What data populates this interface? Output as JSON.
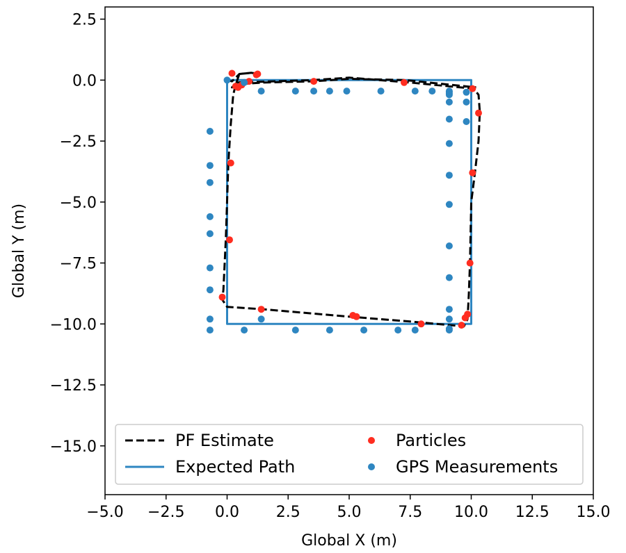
{
  "chart_data": {
    "type": "scatter",
    "title": "",
    "xlabel": "Global X (m)",
    "ylabel": "Global Y (m)",
    "xlim": [
      -5.0,
      15.0
    ],
    "ylim": [
      -17.0,
      3.0
    ],
    "xticks": [
      -5.0,
      -2.5,
      0.0,
      2.5,
      5.0,
      7.5,
      10.0,
      12.5,
      15.0
    ],
    "yticks": [
      2.5,
      0.0,
      -2.5,
      -5.0,
      -7.5,
      -10.0,
      -12.5,
      -15.0
    ],
    "xtick_labels": [
      "−5.0",
      "−2.5",
      "0.0",
      "2.5",
      "5.0",
      "7.5",
      "10.0",
      "12.5",
      "15.0"
    ],
    "ytick_labels": [
      "2.5",
      "0.0",
      "−2.5",
      "−5.0",
      "−7.5",
      "−10.0",
      "−12.5",
      "−15.0"
    ],
    "grid": false,
    "legend_position": "bottom",
    "series": [
      {
        "name": "PF Estimate",
        "kind": "line",
        "style": "dashed",
        "color": "#000000",
        "x": [
          0.0,
          0.2,
          0.5,
          1.0,
          1.3,
          1.0,
          0.5,
          0.35,
          0.25,
          0.15,
          0.05,
          -0.05,
          -0.15,
          -0.2,
          0.0,
          1.5,
          5.0,
          7.5,
          9.7,
          9.85,
          9.9,
          9.95,
          10.0,
          10.15,
          10.3,
          10.35,
          10.3,
          10.1,
          7.5,
          5.0,
          3.5,
          0.4,
          0.2,
          0.25,
          0.3,
          0.7,
          1.5,
          3.5,
          5.0,
          7.3,
          10.2
        ],
        "y": [
          0.0,
          -0.05,
          0.25,
          0.3,
          0.25,
          0.3,
          0.25,
          -0.2,
          -0.6,
          -1.8,
          -3.4,
          -6.5,
          -8.6,
          -9.0,
          -9.3,
          -9.4,
          -9.7,
          -9.9,
          -10.1,
          -9.8,
          -8.8,
          -7.5,
          -5.0,
          -3.8,
          -2.5,
          -1.3,
          -0.6,
          -0.35,
          -0.1,
          0.1,
          0.0,
          -0.1,
          -0.3,
          -0.25,
          -0.2,
          -0.15,
          -0.1,
          -0.05,
          0.05,
          0.0,
          -0.3
        ]
      },
      {
        "name": "Expected Path",
        "kind": "line",
        "style": "solid",
        "color": "#2e86c1",
        "x": [
          0,
          10,
          10,
          0,
          0
        ],
        "y": [
          0,
          0,
          -10,
          -10,
          0
        ]
      },
      {
        "name": "Particles",
        "kind": "scatter",
        "color": "#ff2d20",
        "x": [
          0.2,
          0.35,
          0.45,
          0.6,
          0.9,
          1.2,
          1.25,
          3.55,
          7.25,
          10.05,
          10.3,
          10.05,
          9.95,
          9.85,
          9.75,
          9.6,
          7.95,
          5.3,
          5.15,
          1.4,
          -0.2,
          0.1,
          0.15
        ],
        "y": [
          0.28,
          -0.25,
          -0.3,
          -0.2,
          -0.05,
          0.22,
          0.25,
          -0.05,
          -0.1,
          -0.35,
          -1.35,
          -3.8,
          -7.5,
          -9.6,
          -9.75,
          -10.05,
          -10.0,
          -9.7,
          -9.65,
          -9.4,
          -8.9,
          -6.55,
          -3.4
        ]
      },
      {
        "name": "GPS Measurements",
        "kind": "scatter",
        "color": "#2e86c1",
        "x": [
          0.0,
          0.7,
          1.4,
          2.8,
          3.55,
          4.2,
          4.9,
          6.3,
          7.7,
          8.4,
          9.1,
          9.1,
          9.1,
          9.1,
          9.1,
          9.1,
          9.1,
          9.1,
          9.1,
          9.1,
          9.1,
          9.1,
          9.1,
          9.1,
          9.1,
          9.8,
          9.8,
          9.8,
          7.7,
          7.0,
          5.6,
          4.2,
          2.8,
          0.7,
          -0.7,
          -0.7,
          1.4,
          -0.7,
          -0.7,
          -0.7,
          -0.7,
          -0.7,
          -0.7,
          -0.7
        ],
        "y": [
          0.0,
          -0.1,
          -0.45,
          -0.45,
          -0.45,
          -0.45,
          -0.45,
          -0.45,
          -0.45,
          -0.45,
          -0.45,
          -0.9,
          -1.6,
          -2.6,
          -3.9,
          -5.1,
          -6.8,
          -8.1,
          -9.4,
          -9.8,
          -10.2,
          -10.25,
          -0.5,
          -0.55,
          -0.6,
          -0.9,
          -1.7,
          -0.5,
          -10.25,
          -10.25,
          -10.25,
          -10.25,
          -10.25,
          -10.25,
          -10.25,
          -9.8,
          -9.8,
          -8.6,
          -7.7,
          -6.3,
          -5.6,
          -4.2,
          -3.5,
          -2.1
        ]
      }
    ]
  }
}
